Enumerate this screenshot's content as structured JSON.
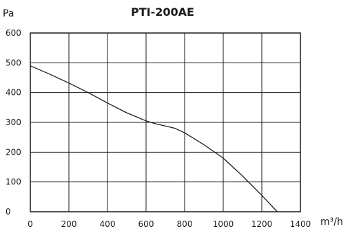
{
  "chart_data": {
    "type": "line",
    "title": "PTI-200AE",
    "ylabel": "Pa",
    "xlabel": "m³/h",
    "xlim": [
      0,
      1400
    ],
    "ylim": [
      0,
      600
    ],
    "xticks": [
      0,
      200,
      400,
      600,
      800,
      1000,
      1200,
      1400
    ],
    "yticks": [
      0,
      100,
      200,
      300,
      400,
      500,
      600
    ],
    "grid": true,
    "legend": "none",
    "colors": {
      "line": "#1a1a1a",
      "grid": "#1a1a1a",
      "frame": "#1a1a1a"
    },
    "series": [
      {
        "x": [
          0,
          100,
          200,
          300,
          400,
          500,
          600,
          650,
          700,
          750,
          800,
          900,
          1000,
          1100,
          1200,
          1280
        ],
        "y": [
          490,
          462,
          432,
          400,
          365,
          332,
          305,
          295,
          288,
          280,
          265,
          225,
          180,
          120,
          55,
          0
        ]
      }
    ]
  }
}
